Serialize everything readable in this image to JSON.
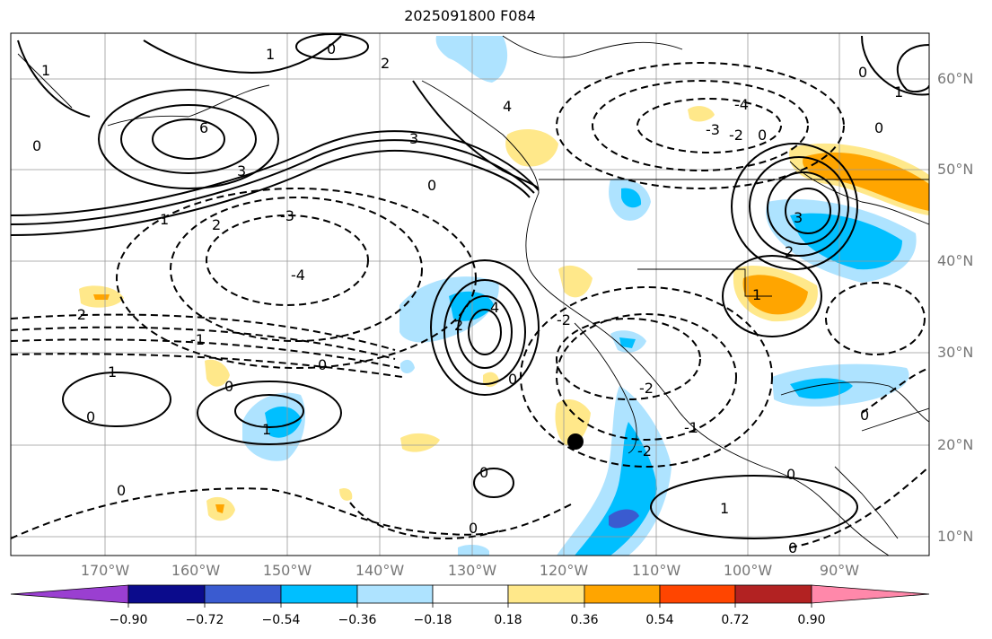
{
  "title": "2025091800 F084",
  "map": {
    "lat_labels": [
      "60°N",
      "50°N",
      "40°N",
      "30°N",
      "20°N",
      "10°N"
    ],
    "lon_labels": [
      "170°W",
      "160°W",
      "150°W",
      "140°W",
      "130°W",
      "120°W",
      "110°W",
      "100°W",
      "90°W"
    ],
    "contour_labels": [
      "0",
      "1",
      "2",
      "3",
      "4",
      "6",
      "-1",
      "-2",
      "-3",
      "-4"
    ],
    "marker": "black dot"
  },
  "colorbar": {
    "ticks": [
      "−0.90",
      "−0.72",
      "−0.54",
      "−0.36",
      "−0.18",
      "0.18",
      "0.36",
      "0.54",
      "0.72",
      "0.90"
    ],
    "colors": [
      "#9a3fd1",
      "#0b0b8c",
      "#3a5bd0",
      "#00bfff",
      "#aee3ff",
      "#ffffff",
      "#ffe88a",
      "#ffa500",
      "#ff4500",
      "#b22222",
      "#ff88aa"
    ]
  }
}
